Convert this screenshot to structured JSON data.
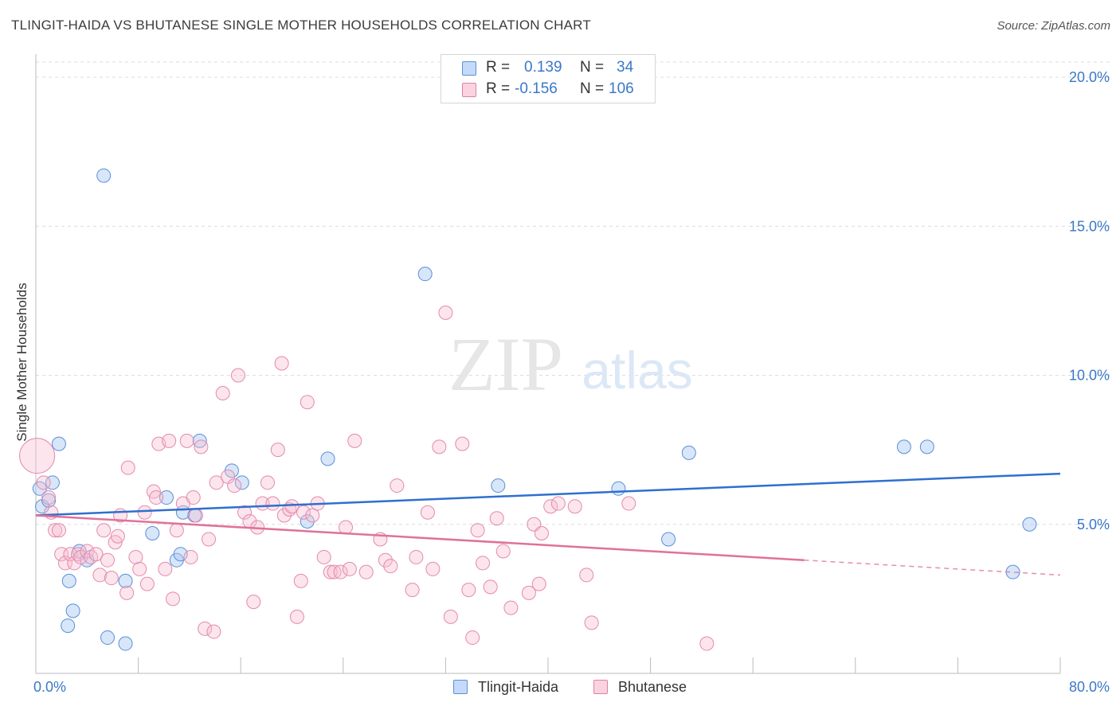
{
  "header": {
    "title": "TLINGIT-HAIDA VS BHUTANESE SINGLE MOTHER HOUSEHOLDS CORRELATION CHART",
    "source": "Source: ZipAtlas.com"
  },
  "watermark": {
    "zip": "ZIP",
    "atlas": "atlas"
  },
  "legend": {
    "r_label": "R =",
    "n_label": "N =",
    "rows": [
      {
        "r": "0.139",
        "n": "34",
        "color": "#a9c8f0",
        "border": "#5b8fd6"
      },
      {
        "r": "-0.156",
        "n": "106",
        "color": "#f7bfd2",
        "border": "#e07fa0"
      }
    ]
  },
  "bottom_legend": [
    {
      "label": "Tlingit-Haida",
      "color": "#c4dafa",
      "border": "#5b8fd6"
    },
    {
      "label": "Bhutanese",
      "color": "#fbd3e0",
      "border": "#e07fa0"
    }
  ],
  "chart_data": {
    "type": "scatter",
    "title": "TLINGIT-HAIDA VS BHUTANESE SINGLE MOTHER HOUSEHOLDS CORRELATION CHART",
    "xlabel": "",
    "ylabel": "Single Mother Households",
    "xlim": [
      0,
      80
    ],
    "ylim": [
      0,
      20
    ],
    "x_tick_labels": [
      "0.0%",
      "80.0%"
    ],
    "y_ticks": [
      5,
      10,
      15,
      20
    ],
    "y_tick_labels": [
      "5.0%",
      "10.0%",
      "15.0%",
      "20.0%"
    ],
    "grid": true,
    "legend_position": "top-center",
    "colors": {
      "tlingit": "#2f6fcf",
      "bhutanese": "#e0719a"
    },
    "series": [
      {
        "name": "Tlingit-Haida",
        "points": [
          [
            0.3,
            6.2
          ],
          [
            0.5,
            5.6
          ],
          [
            1.0,
            5.8
          ],
          [
            1.3,
            6.4
          ],
          [
            1.8,
            7.7
          ],
          [
            2.5,
            1.6
          ],
          [
            2.6,
            3.1
          ],
          [
            2.9,
            2.1
          ],
          [
            3.4,
            4.1
          ],
          [
            4.0,
            3.8
          ],
          [
            5.3,
            16.7
          ],
          [
            5.6,
            1.2
          ],
          [
            7.0,
            3.1
          ],
          [
            7.0,
            1.0
          ],
          [
            9.1,
            4.7
          ],
          [
            10.2,
            5.9
          ],
          [
            11.0,
            3.8
          ],
          [
            11.3,
            4.0
          ],
          [
            11.5,
            5.4
          ],
          [
            12.4,
            5.3
          ],
          [
            12.8,
            7.8
          ],
          [
            15.3,
            6.8
          ],
          [
            16.1,
            6.4
          ],
          [
            21.2,
            5.1
          ],
          [
            22.8,
            7.2
          ],
          [
            30.4,
            13.4
          ],
          [
            36.1,
            6.3
          ],
          [
            45.5,
            6.2
          ],
          [
            49.4,
            4.5
          ],
          [
            51.0,
            7.4
          ],
          [
            67.8,
            7.6
          ],
          [
            69.6,
            7.6
          ],
          [
            76.3,
            3.4
          ],
          [
            77.6,
            5.0
          ]
        ],
        "trend": {
          "x": [
            0,
            80
          ],
          "y": [
            5.3,
            6.7
          ]
        }
      },
      {
        "name": "Bhutanese",
        "points": [
          [
            0.1,
            7.3
          ],
          [
            0.6,
            6.4
          ],
          [
            1.0,
            5.9
          ],
          [
            1.2,
            5.4
          ],
          [
            1.5,
            4.8
          ],
          [
            1.8,
            4.8
          ],
          [
            2.0,
            4.0
          ],
          [
            2.3,
            3.7
          ],
          [
            2.7,
            4.0
          ],
          [
            3.0,
            3.7
          ],
          [
            3.3,
            4.0
          ],
          [
            3.5,
            3.9
          ],
          [
            4.0,
            4.1
          ],
          [
            4.3,
            3.9
          ],
          [
            4.7,
            4.0
          ],
          [
            5.0,
            3.3
          ],
          [
            5.3,
            4.8
          ],
          [
            5.6,
            3.8
          ],
          [
            5.9,
            3.2
          ],
          [
            6.2,
            4.4
          ],
          [
            6.4,
            4.6
          ],
          [
            6.6,
            5.3
          ],
          [
            7.1,
            2.7
          ],
          [
            7.2,
            6.9
          ],
          [
            7.8,
            3.9
          ],
          [
            8.1,
            3.5
          ],
          [
            8.5,
            5.4
          ],
          [
            8.7,
            3.0
          ],
          [
            9.2,
            6.1
          ],
          [
            9.4,
            5.9
          ],
          [
            9.6,
            7.7
          ],
          [
            10.1,
            3.5
          ],
          [
            10.4,
            7.8
          ],
          [
            10.7,
            2.5
          ],
          [
            11.0,
            4.8
          ],
          [
            11.5,
            5.7
          ],
          [
            11.8,
            7.8
          ],
          [
            12.1,
            3.9
          ],
          [
            12.3,
            5.9
          ],
          [
            12.5,
            5.3
          ],
          [
            12.9,
            7.6
          ],
          [
            13.2,
            1.5
          ],
          [
            13.5,
            4.5
          ],
          [
            13.9,
            1.4
          ],
          [
            14.1,
            6.4
          ],
          [
            14.6,
            9.4
          ],
          [
            15.0,
            6.6
          ],
          [
            15.5,
            6.3
          ],
          [
            15.8,
            10.0
          ],
          [
            16.3,
            5.4
          ],
          [
            16.7,
            5.1
          ],
          [
            17.0,
            2.4
          ],
          [
            17.3,
            4.9
          ],
          [
            17.7,
            5.7
          ],
          [
            18.1,
            6.4
          ],
          [
            18.5,
            5.7
          ],
          [
            18.9,
            7.5
          ],
          [
            19.2,
            10.4
          ],
          [
            19.4,
            5.3
          ],
          [
            19.8,
            5.5
          ],
          [
            20.0,
            5.6
          ],
          [
            20.4,
            1.9
          ],
          [
            20.7,
            3.1
          ],
          [
            20.9,
            5.4
          ],
          [
            21.2,
            9.1
          ],
          [
            21.6,
            5.3
          ],
          [
            22.0,
            5.7
          ],
          [
            22.5,
            3.9
          ],
          [
            23.0,
            3.4
          ],
          [
            23.3,
            3.4
          ],
          [
            23.8,
            3.4
          ],
          [
            24.2,
            4.9
          ],
          [
            24.5,
            3.5
          ],
          [
            24.9,
            7.8
          ],
          [
            25.8,
            3.4
          ],
          [
            26.9,
            4.5
          ],
          [
            27.3,
            3.8
          ],
          [
            27.7,
            3.6
          ],
          [
            28.2,
            6.3
          ],
          [
            29.4,
            2.8
          ],
          [
            29.7,
            3.9
          ],
          [
            30.6,
            5.4
          ],
          [
            31.0,
            3.5
          ],
          [
            31.5,
            7.6
          ],
          [
            32.0,
            12.1
          ],
          [
            32.4,
            1.9
          ],
          [
            33.3,
            7.7
          ],
          [
            33.8,
            2.8
          ],
          [
            34.1,
            1.2
          ],
          [
            34.5,
            4.8
          ],
          [
            34.9,
            3.7
          ],
          [
            35.5,
            2.9
          ],
          [
            36.0,
            5.2
          ],
          [
            36.5,
            4.1
          ],
          [
            37.1,
            2.2
          ],
          [
            38.5,
            2.7
          ],
          [
            38.9,
            5.0
          ],
          [
            39.5,
            4.7
          ],
          [
            40.2,
            5.6
          ],
          [
            40.8,
            5.7
          ],
          [
            42.1,
            5.6
          ],
          [
            43.0,
            3.3
          ],
          [
            43.4,
            1.7
          ],
          [
            46.3,
            5.7
          ],
          [
            52.4,
            1.0
          ],
          [
            39.3,
            3.0
          ]
        ],
        "trend": {
          "x": [
            0,
            60
          ],
          "y": [
            5.3,
            3.8
          ]
        },
        "trend_dashed": {
          "x": [
            60,
            80
          ],
          "y": [
            3.8,
            3.3
          ]
        }
      }
    ]
  }
}
